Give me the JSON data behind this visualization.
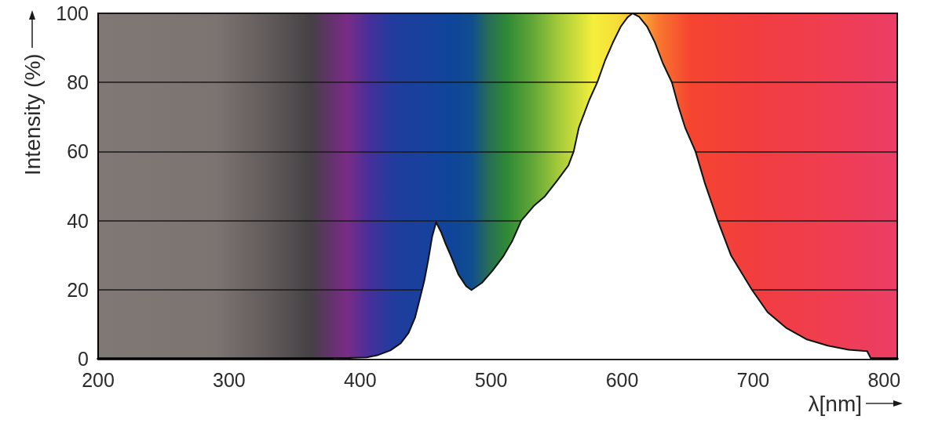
{
  "chart_data": {
    "type": "area",
    "xlabel": "λ[nm]",
    "ylabel": "Intensity (%)",
    "x": [
      380,
      395,
      405,
      413,
      423,
      431,
      437,
      442,
      446,
      449,
      452,
      455,
      458,
      462,
      465,
      469,
      475,
      481,
      485,
      493,
      501,
      509,
      516,
      523,
      533,
      541,
      550,
      559,
      563,
      567,
      575,
      581,
      587,
      593,
      599,
      604,
      608,
      613,
      619,
      625,
      631,
      638,
      643,
      648,
      656,
      663,
      673,
      683,
      699,
      711,
      725,
      741,
      757,
      773,
      787,
      790
    ],
    "values": [
      0,
      0.3,
      0.4,
      1,
      2.4,
      4.5,
      7.5,
      12,
      18,
      22.6,
      28.6,
      35.4,
      39.5,
      36.5,
      33.5,
      30,
      24.4,
      21,
      19.9,
      22,
      25.5,
      29.5,
      34,
      40,
      44.4,
      47,
      51.4,
      56,
      60,
      67,
      75,
      80,
      86.4,
      91.6,
      96.2,
      98.8,
      100,
      99,
      96.2,
      91.6,
      85.6,
      80,
      73,
      67,
      60,
      51,
      40,
      30,
      20,
      13.5,
      9,
      5.6,
      3.8,
      2.6,
      2.2,
      0
    ],
    "color": "#ffffff",
    "xlim": [
      200,
      810
    ],
    "ylim": [
      0,
      100
    ],
    "xticks": [
      200,
      300,
      400,
      500,
      600,
      700,
      800
    ],
    "yticks": [
      0,
      20,
      40,
      60,
      80,
      100
    ],
    "grid": "y"
  }
}
